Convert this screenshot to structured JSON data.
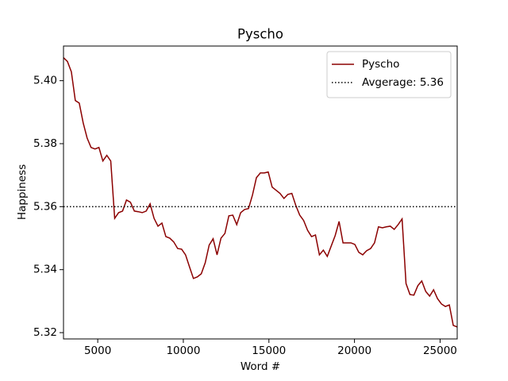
{
  "chart_data": {
    "type": "line",
    "title": "Pyscho",
    "xlabel": "Word #",
    "ylabel": "Happiness",
    "x": [
      3000,
      3230,
      3460,
      3690,
      3920,
      4150,
      4380,
      4610,
      4840,
      5070,
      5300,
      5530,
      5760,
      5990,
      6220,
      6450,
      6680,
      6910,
      7140,
      7370,
      7600,
      7830,
      8060,
      8290,
      8520,
      8750,
      8980,
      9210,
      9440,
      9670,
      9900,
      10130,
      10360,
      10590,
      10820,
      11050,
      11280,
      11510,
      11740,
      11970,
      12200,
      12430,
      12660,
      12890,
      13120,
      13350,
      13580,
      13810,
      14040,
      14270,
      14500,
      14730,
      14960,
      15190,
      15420,
      15650,
      15880,
      16110,
      16340,
      16570,
      16800,
      17030,
      17260,
      17490,
      17720,
      17950,
      18180,
      18410,
      18640,
      18870,
      19100,
      19330,
      19560,
      19790,
      20020,
      20250,
      20480,
      20710,
      20940,
      21170,
      21400,
      21630,
      21860,
      22090,
      22320,
      22550,
      22780,
      23010,
      23240,
      23470,
      23700,
      23930,
      24160,
      24390,
      24620,
      24850,
      25080,
      25310,
      25540,
      25770,
      26000
    ],
    "series": [
      {
        "name": "Pyscho",
        "color": "#8b0000",
        "values": [
          5.4073,
          5.4061,
          5.4028,
          5.3937,
          5.3929,
          5.3866,
          5.3818,
          5.3788,
          5.3783,
          5.3788,
          5.3745,
          5.3763,
          5.3745,
          5.3563,
          5.3581,
          5.3586,
          5.3621,
          5.3614,
          5.3586,
          5.3584,
          5.3581,
          5.3586,
          5.3609,
          5.3563,
          5.3538,
          5.3548,
          5.3505,
          5.35,
          5.3488,
          5.3467,
          5.3465,
          5.3447,
          5.3409,
          5.3372,
          5.3377,
          5.3387,
          5.3422,
          5.3478,
          5.3498,
          5.3447,
          5.35,
          5.3515,
          5.3571,
          5.3573,
          5.3543,
          5.3581,
          5.3591,
          5.3594,
          5.3637,
          5.3692,
          5.3707,
          5.3707,
          5.371,
          5.3662,
          5.3652,
          5.3642,
          5.3626,
          5.3639,
          5.3642,
          5.3604,
          5.3573,
          5.3556,
          5.3525,
          5.3505,
          5.351,
          5.3447,
          5.3462,
          5.3442,
          5.3475,
          5.3508,
          5.3553,
          5.3485,
          5.3485,
          5.3485,
          5.348,
          5.3455,
          5.3447,
          5.346,
          5.3467,
          5.3485,
          5.3536,
          5.3533,
          5.3536,
          5.3538,
          5.3528,
          5.3543,
          5.3561,
          5.3356,
          5.3321,
          5.3319,
          5.3349,
          5.3364,
          5.3331,
          5.3316,
          5.3336,
          5.3308,
          5.3291,
          5.3283,
          5.3288,
          5.3223,
          5.3218
        ]
      }
    ],
    "reference_line": {
      "name": "Avgerage: 5.36",
      "value": 5.36,
      "color": "#000000",
      "style": "dotted"
    },
    "xlim": [
      3000,
      26000
    ],
    "ylim": [
      5.318,
      5.411
    ],
    "xticks": [
      5000,
      10000,
      15000,
      20000,
      25000
    ],
    "yticks": [
      5.32,
      5.34,
      5.36,
      5.38,
      {
        "value": 5.4,
        "label": "5.40"
      }
    ],
    "legend": "upper right"
  }
}
